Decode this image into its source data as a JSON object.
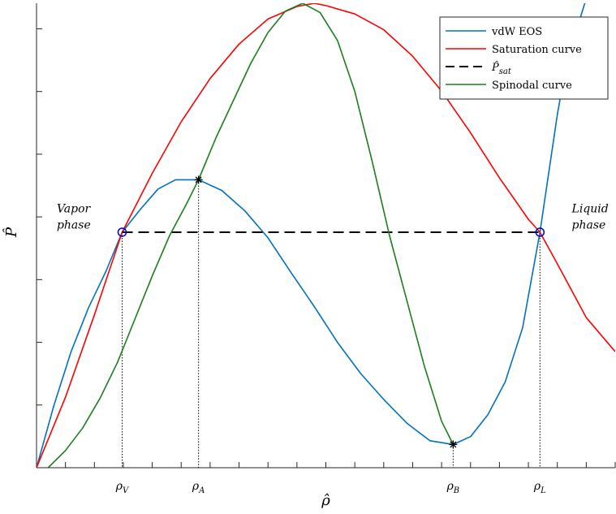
{
  "chart_data": {
    "type": "line",
    "xlabel": "ρ̂",
    "ylabel": "P̂",
    "xlim": [
      0,
      1.0
    ],
    "ylim": [
      0,
      1.0
    ],
    "grid": false,
    "legend_position": "top-right",
    "x_tick_values": [
      0.0,
      0.05,
      0.1,
      0.15,
      0.2,
      0.25,
      0.3,
      0.35,
      0.4,
      0.45,
      0.5,
      0.55,
      0.6,
      0.65,
      0.7,
      0.75,
      0.8,
      0.85,
      0.9,
      0.95,
      1.0
    ],
    "y_tick_values": [
      0.0,
      0.135,
      0.27,
      0.405,
      0.54,
      0.675,
      0.81,
      0.945
    ],
    "x_tick_labels": [
      {
        "value": 0.148,
        "label": "ρ",
        "sub": "V"
      },
      {
        "value": 0.28,
        "label": "ρ",
        "sub": "A"
      },
      {
        "value": 0.72,
        "label": "ρ",
        "sub": "B"
      },
      {
        "value": 0.87,
        "label": "ρ",
        "sub": "L"
      }
    ],
    "series": [
      {
        "name": "vdW EOS",
        "color": "#0072BD",
        "style": "solid",
        "x": [
          0.0,
          0.03,
          0.06,
          0.09,
          0.12,
          0.148,
          0.18,
          0.21,
          0.24,
          0.28,
          0.32,
          0.36,
          0.4,
          0.44,
          0.48,
          0.52,
          0.56,
          0.6,
          0.64,
          0.68,
          0.7,
          0.72,
          0.75,
          0.78,
          0.81,
          0.84,
          0.87,
          0.9,
          0.92,
          0.94,
          0.96,
          0.98
        ],
        "y": [
          0.0,
          0.134,
          0.251,
          0.345,
          0.423,
          0.507,
          0.557,
          0.6,
          0.62,
          0.62,
          0.597,
          0.553,
          0.495,
          0.42,
          0.347,
          0.27,
          0.203,
          0.147,
          0.096,
          0.058,
          0.054,
          0.05,
          0.067,
          0.114,
          0.185,
          0.301,
          0.507,
          0.76,
          0.903,
          0.97,
          1.05,
          1.12
        ]
      },
      {
        "name": "Saturation curve",
        "color": "#FF0000",
        "style": "solid",
        "x": [
          0.0,
          0.05,
          0.1,
          0.148,
          0.2,
          0.25,
          0.3,
          0.35,
          0.4,
          0.45,
          0.48,
          0.5,
          0.55,
          0.6,
          0.65,
          0.7,
          0.75,
          0.8,
          0.85,
          0.87,
          0.9,
          0.95,
          1.0
        ],
        "y": [
          0.0,
          0.152,
          0.329,
          0.507,
          0.634,
          0.745,
          0.838,
          0.912,
          0.966,
          0.993,
          1.0,
          0.995,
          0.977,
          0.943,
          0.886,
          0.811,
          0.721,
          0.624,
          0.535,
          0.507,
          0.439,
          0.323,
          0.25
        ]
      },
      {
        "name": "P̂sat",
        "color": "#000000",
        "style": "dashed",
        "x": [
          0.148,
          0.87
        ],
        "y": [
          0.507,
          0.507
        ]
      },
      {
        "name": "Spinodal curve",
        "color": "#1A7F1A",
        "style": "solid",
        "x": [
          0.02,
          0.05,
          0.08,
          0.11,
          0.14,
          0.17,
          0.2,
          0.23,
          0.26,
          0.28,
          0.31,
          0.34,
          0.37,
          0.4,
          0.43,
          0.46,
          0.49,
          0.52,
          0.55,
          0.58,
          0.61,
          0.64,
          0.67,
          0.7,
          0.72
        ],
        "y": [
          0.0,
          0.037,
          0.086,
          0.15,
          0.227,
          0.32,
          0.413,
          0.5,
          0.57,
          0.62,
          0.71,
          0.79,
          0.87,
          0.937,
          0.983,
          1.0,
          0.98,
          0.92,
          0.81,
          0.66,
          0.5,
          0.36,
          0.22,
          0.1,
          0.05
        ]
      }
    ],
    "markers": [
      {
        "type": "circle",
        "color": "#0000CC",
        "x": 0.148,
        "y": 0.507
      },
      {
        "type": "circle",
        "color": "#0000CC",
        "x": 0.87,
        "y": 0.507
      },
      {
        "type": "star",
        "color": "#000000",
        "x": 0.28,
        "y": 0.62
      },
      {
        "type": "star",
        "color": "#000000",
        "x": 0.72,
        "y": 0.05
      }
    ],
    "dotted_guides": [
      {
        "x": 0.148,
        "y": 0.507
      },
      {
        "x": 0.28,
        "y": 0.62
      },
      {
        "x": 0.72,
        "y": 0.05
      },
      {
        "x": 0.87,
        "y": 0.507
      }
    ],
    "annotations": [
      {
        "lines": [
          "Vapor",
          "phase"
        ],
        "x": 0.035,
        "y": 0.55
      },
      {
        "lines": [
          "Liquid",
          "phase"
        ],
        "x": 0.925,
        "y": 0.55
      }
    ]
  }
}
